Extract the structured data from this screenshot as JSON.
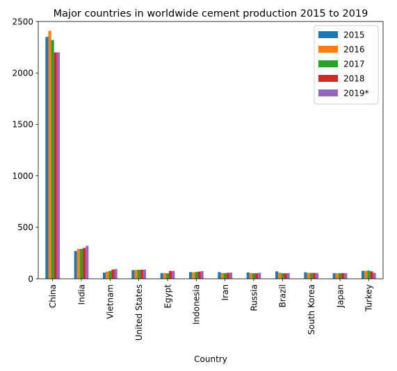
{
  "chart_data": {
    "type": "bar",
    "title": "Major countries in worldwide cement production 2015 to 2019",
    "xlabel": "Country",
    "ylabel": "",
    "ylim": [
      0,
      2500
    ],
    "yticks": [
      0,
      500,
      1000,
      1500,
      2000,
      2500
    ],
    "grid": false,
    "legend_position": "top-right",
    "categories": [
      "China",
      "India",
      "Vietnam",
      "United States",
      "Egypt",
      "Indonesia",
      "Iran",
      "Russia",
      "Brazil",
      "South Korea",
      "Japan",
      "Turkey"
    ],
    "series": [
      {
        "name": "2015",
        "color": "#1f77b4",
        "values": [
          2350,
          270,
          60,
          84,
          55,
          65,
          65,
          62,
          72,
          63,
          55,
          77
        ]
      },
      {
        "name": "2016",
        "color": "#ff7f0e",
        "values": [
          2410,
          290,
          70,
          86,
          55,
          63,
          56,
          56,
          60,
          57,
          53,
          77
        ]
      },
      {
        "name": "2017",
        "color": "#2ca02c",
        "values": [
          2320,
          290,
          78,
          87,
          53,
          66,
          55,
          54,
          54,
          57,
          55,
          80
        ]
      },
      {
        "name": "2018",
        "color": "#d62728",
        "values": [
          2200,
          300,
          90,
          88,
          76,
          70,
          58,
          54,
          53,
          57,
          55,
          72
        ]
      },
      {
        "name": "2019*",
        "color": "#9467bd",
        "values": [
          2200,
          320,
          95,
          89,
          76,
          74,
          60,
          58,
          55,
          55,
          54,
          57
        ]
      }
    ]
  }
}
